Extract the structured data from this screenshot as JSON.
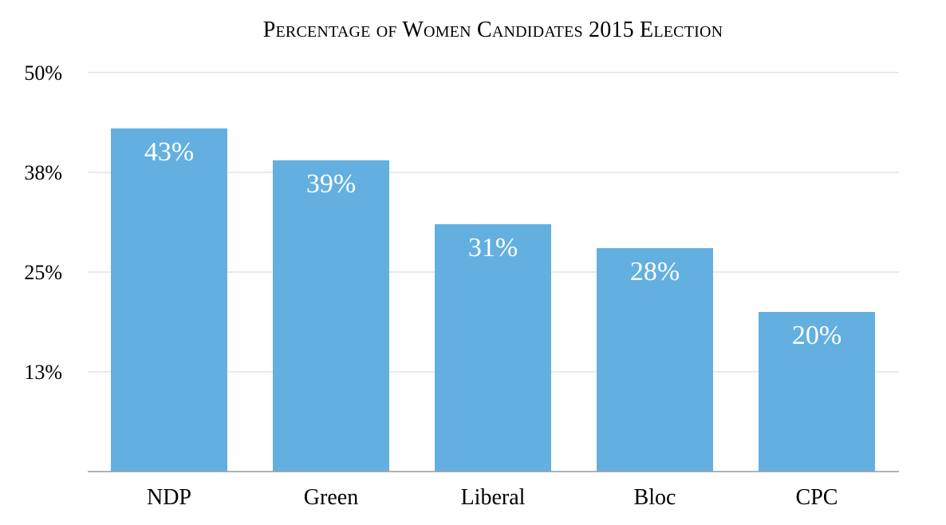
{
  "chart_data": {
    "type": "bar",
    "title": "Percentage of Women Candidates 2015 Election",
    "categories": [
      "NDP",
      "Green",
      "Liberal",
      "Bloc",
      "CPC"
    ],
    "values": [
      43,
      39,
      31,
      28,
      20
    ],
    "data_labels": [
      "43%",
      "39%",
      "31%",
      "28%",
      "20%"
    ],
    "ylim": [
      0,
      50
    ],
    "yticks": [
      {
        "value": 12.5,
        "label": "13%"
      },
      {
        "value": 25,
        "label": "25%"
      },
      {
        "value": 37.5,
        "label": "38%"
      },
      {
        "value": 50,
        "label": "50%"
      }
    ],
    "xlabel": "",
    "ylabel": "",
    "grid": true,
    "colors": {
      "bar": "#63b0e0",
      "data_label": "#ffffff",
      "grid": "#d6d6d6",
      "axis": "#9a9a9a",
      "text": "#000000"
    }
  }
}
